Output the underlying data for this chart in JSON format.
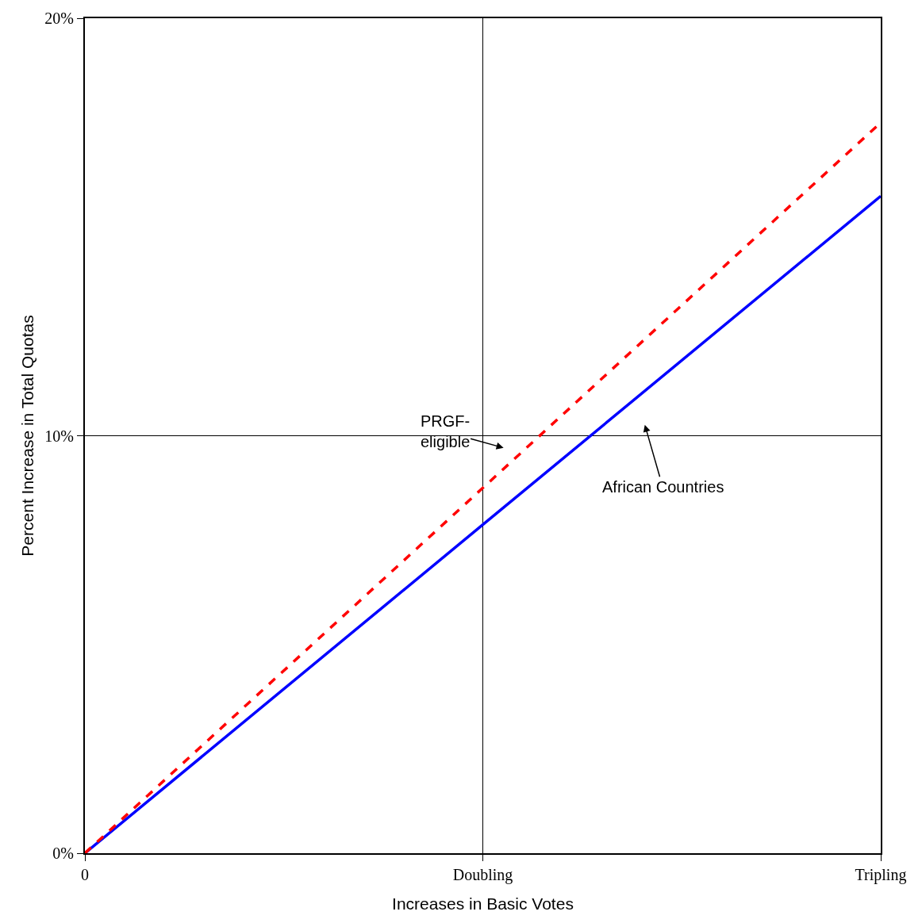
{
  "chart_data": {
    "type": "line",
    "xlabel": "Increases in Basic Votes",
    "ylabel": "Percent Increase in Total Quotas",
    "categories": [
      "0",
      "Doubling",
      "Tripling"
    ],
    "ylim": [
      0,
      20
    ],
    "yticks": [
      {
        "value": 0,
        "label": "0%"
      },
      {
        "value": 10,
        "label": "10%"
      },
      {
        "value": 20,
        "label": "20%"
      }
    ],
    "grid": true,
    "marker": "none",
    "series": [
      {
        "color": "#0000ff",
        "values": [
          0,
          7.87,
          15.74
        ],
        "line_style": "solid"
      },
      {
        "color": "#ff0000",
        "values": [
          0,
          8.75,
          17.5
        ],
        "line_style": "dashed"
      }
    ],
    "annotations": [
      "PRGF-\neligible",
      "African Countries"
    ]
  }
}
